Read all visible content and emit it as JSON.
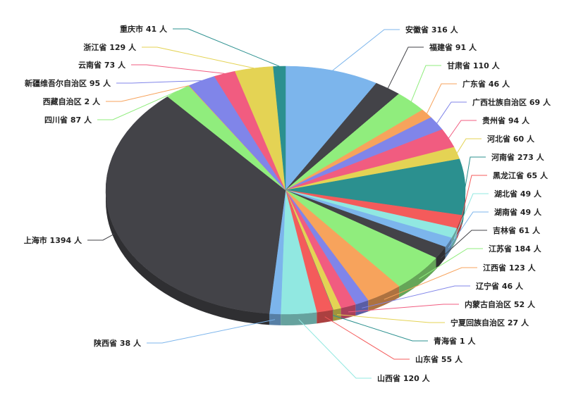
{
  "chart_data": {
    "type": "pie",
    "title": "",
    "unit": "人",
    "categories": [
      "安徽省",
      "福建省",
      "甘肃省",
      "广东省",
      "广西壮族自治区",
      "贵州省",
      "河北省",
      "河南省",
      "黑龙江省",
      "湖北省",
      "湖南省",
      "吉林省",
      "江苏省",
      "江西省",
      "辽宁省",
      "内蒙古自治区",
      "宁夏回族自治区",
      "青海省",
      "山东省",
      "山西省",
      "陕西省",
      "上海市",
      "四川省",
      "西藏自治区",
      "新疆维吾尔自治区",
      "云南省",
      "浙江省",
      "重庆市"
    ],
    "values": [
      316,
      91,
      110,
      46,
      69,
      94,
      60,
      273,
      65,
      49,
      49,
      61,
      184,
      123,
      46,
      52,
      27,
      1,
      55,
      120,
      38,
      1394,
      87,
      2,
      95,
      73,
      129,
      41
    ],
    "labels": [
      "安徽省 316 人",
      "福建省 91 人",
      "甘肃省 110 人",
      "广东省 46 人",
      "广西壮族自治区 69 人",
      "贵州省 94 人",
      "河北省 60 人",
      "河南省 273 人",
      "黑龙江省 65 人",
      "湖北省 49 人",
      "湖南省 49 人",
      "吉林省 61 人",
      "江苏省 184 人",
      "江西省 123 人",
      "辽宁省 46 人",
      "内蒙古自治区 52 人",
      "宁夏回族自治区 27 人",
      "青海省 1 人",
      "山东省 55 人",
      "山西省 120 人",
      "陕西省 38 人",
      "上海市 1394 人",
      "四川省 87 人",
      "西藏自治区 2 人",
      "新疆维吾尔自治区 95 人",
      "云南省 73 人",
      "浙江省 129 人",
      "重庆市 41 人"
    ],
    "colors": [
      "#7cb5ec",
      "#434348",
      "#90ed7d",
      "#f7a35c",
      "#8085e9",
      "#f15c80",
      "#e4d354",
      "#2b908f",
      "#f45b5b",
      "#91e8e1"
    ],
    "style": "3d"
  }
}
